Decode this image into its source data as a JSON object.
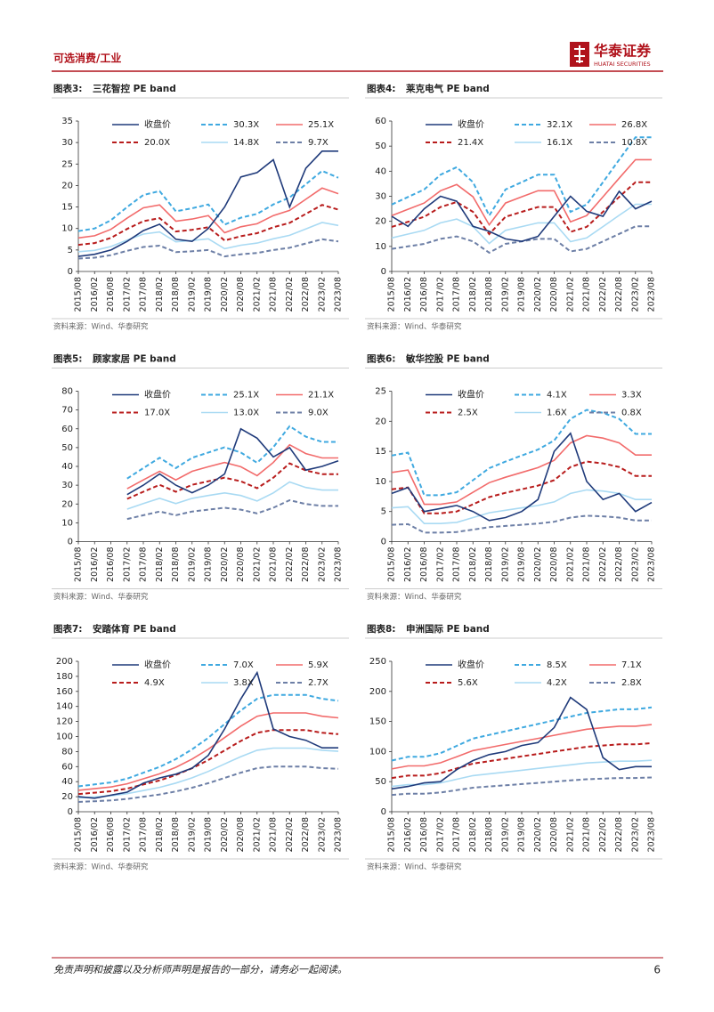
{
  "header": {
    "section": "可选消费/工业",
    "logo_cn": "华泰证券",
    "logo_en": "HUATAI SECURITIES"
  },
  "footer": {
    "disclaimer": "免责声明和披露以及分析师声明是报告的一部分，请务必一起阅读。",
    "page": "6"
  },
  "chart_data": [
    {
      "type": "line",
      "label": "图表3:",
      "title": "三花智控 PE band",
      "source": "资料来源：Wind、华泰研究",
      "categories": [
        "2015/08",
        "2016/02",
        "2016/08",
        "2017/02",
        "2017/08",
        "2018/02",
        "2018/08",
        "2019/02",
        "2019/08",
        "2020/02",
        "2020/08",
        "2021/02",
        "2021/08",
        "2022/02",
        "2022/08",
        "2023/02",
        "2023/08"
      ],
      "ylim": [
        0,
        35
      ],
      "yticks": [
        0,
        5,
        10,
        15,
        20,
        25,
        30,
        35
      ],
      "series": [
        {
          "name": "收盘价",
          "color": "#1f3a7a",
          "dashed": false,
          "values": [
            3.5,
            4,
            5,
            7,
            9.5,
            11,
            7.5,
            7,
            10,
            15,
            22,
            23,
            26,
            15,
            24,
            28,
            28
          ]
        },
        {
          "name": "30.3X",
          "color": "#3fa9e0",
          "dashed": true,
          "values": [
            9.4,
            10,
            11.9,
            15,
            17.8,
            18.7,
            14,
            14.7,
            15.6,
            10.9,
            12.5,
            13.4,
            15.6,
            17.2,
            20.3,
            23.4,
            21.8
          ]
        },
        {
          "name": "25.1X",
          "color": "#f26b6b",
          "dashed": false,
          "values": [
            7.8,
            8.3,
            9.8,
            12.4,
            14.8,
            15.5,
            11.7,
            12.2,
            13,
            9,
            10.4,
            11.1,
            13,
            14.2,
            16.8,
            19.4,
            18.1
          ]
        },
        {
          "name": "20.0X",
          "color": "#b81c1c",
          "dashed": true,
          "values": [
            6.2,
            6.6,
            7.8,
            9.9,
            11.7,
            12.4,
            9.3,
            9.7,
            10.3,
            7.2,
            8.2,
            8.9,
            10.3,
            11.3,
            13.4,
            15.5,
            14.4
          ]
        },
        {
          "name": "14.8X",
          "color": "#a9daf3",
          "dashed": false,
          "values": [
            4.6,
            4.9,
            5.8,
            7.3,
            8.7,
            9.2,
            6.9,
            7.2,
            7.6,
            5.3,
            6.1,
            6.6,
            7.6,
            8.4,
            9.9,
            11.4,
            10.7
          ]
        },
        {
          "name": "9.7X",
          "color": "#6d7fa6",
          "dashed": true,
          "values": [
            3,
            3.2,
            3.8,
            4.8,
            5.7,
            6,
            4.5,
            4.7,
            5,
            3.5,
            4,
            4.3,
            5,
            5.5,
            6.5,
            7.5,
            7
          ]
        }
      ]
    },
    {
      "type": "line",
      "label": "图表4:",
      "title": "莱克电气 PE band",
      "source": "资料来源：Wind、华泰研究",
      "categories": [
        "2015/08",
        "2016/02",
        "2016/08",
        "2017/02",
        "2017/08",
        "2018/02",
        "2018/08",
        "2019/02",
        "2019/08",
        "2020/02",
        "2020/08",
        "2021/02",
        "2021/08",
        "2022/02",
        "2022/08",
        "2023/02",
        "2023/08"
      ],
      "ylim": [
        0,
        60
      ],
      "yticks": [
        0,
        10,
        20,
        30,
        40,
        50,
        60
      ],
      "series": [
        {
          "name": "收盘价",
          "color": "#1f3a7a",
          "dashed": false,
          "values": [
            22,
            18,
            25,
            30,
            28,
            18,
            16,
            13,
            12,
            14,
            22,
            30,
            24,
            22,
            32,
            25,
            28
          ]
        },
        {
          "name": "32.1X",
          "color": "#3fa9e0",
          "dashed": true,
          "values": [
            26.7,
            29.7,
            32.7,
            38.6,
            41.6,
            35.6,
            22.3,
            32.7,
            35.6,
            38.6,
            38.6,
            23.8,
            26.7,
            35.6,
            44.6,
            53.5,
            53.5
          ]
        },
        {
          "name": "26.8X",
          "color": "#f26b6b",
          "dashed": false,
          "values": [
            22.3,
            24.8,
            27.3,
            32.2,
            34.7,
            29.8,
            18.6,
            27.3,
            29.8,
            32.2,
            32.2,
            19.8,
            22.3,
            29.8,
            37.2,
            44.6,
            44.6
          ]
        },
        {
          "name": "21.4X",
          "color": "#b81c1c",
          "dashed": true,
          "values": [
            17.8,
            19.8,
            21.8,
            25.7,
            27.7,
            23.8,
            14.9,
            21.8,
            23.8,
            25.7,
            25.7,
            15.8,
            17.8,
            23.8,
            29.7,
            35.6,
            35.6
          ]
        },
        {
          "name": "16.1X",
          "color": "#a9daf3",
          "dashed": false,
          "values": [
            13.4,
            14.9,
            16.4,
            19.4,
            20.9,
            17.9,
            11.2,
            16.4,
            17.9,
            19.4,
            19.4,
            11.9,
            13.4,
            17.9,
            22.4,
            26.8,
            26.8
          ]
        },
        {
          "name": "10.8X",
          "color": "#6d7fa6",
          "dashed": true,
          "values": [
            9,
            10,
            11,
            13,
            14,
            12,
            7.5,
            11,
            12,
            13,
            13,
            8,
            9,
            12,
            15,
            18,
            18
          ]
        }
      ]
    },
    {
      "type": "line",
      "label": "图表5:",
      "title": "顾家家居 PE band",
      "source": "资料来源：Wind、华泰研究",
      "categories": [
        "2015/08",
        "2016/02",
        "2016/08",
        "2017/02",
        "2017/08",
        "2018/02",
        "2018/08",
        "2019/02",
        "2019/08",
        "2020/02",
        "2020/08",
        "2021/02",
        "2021/08",
        "2022/02",
        "2022/08",
        "2023/02",
        "2023/08"
      ],
      "ylim": [
        0,
        80
      ],
      "yticks": [
        0,
        10,
        20,
        30,
        40,
        50,
        60,
        70,
        80
      ],
      "series": [
        {
          "name": "收盘价",
          "color": "#1f3a7a",
          "dashed": false,
          "values": [
            null,
            null,
            null,
            25,
            30,
            36,
            30,
            26,
            30,
            36,
            60,
            55,
            45,
            50,
            38,
            40,
            43
          ]
        },
        {
          "name": "25.1X",
          "color": "#3fa9e0",
          "dashed": true,
          "values": [
            null,
            null,
            null,
            33.5,
            39.1,
            44.6,
            39.1,
            44.6,
            47.4,
            50.2,
            47.4,
            41.9,
            50.2,
            61.4,
            55.8,
            53,
            53
          ]
        },
        {
          "name": "21.1X",
          "color": "#f26b6b",
          "dashed": false,
          "values": [
            null,
            null,
            null,
            28.1,
            32.8,
            37.4,
            32.8,
            37.4,
            39.8,
            42.1,
            39.8,
            35.1,
            42.1,
            51.5,
            46.8,
            44.5,
            44.5
          ]
        },
        {
          "name": "17.0X",
          "color": "#b81c1c",
          "dashed": true,
          "values": [
            null,
            null,
            null,
            22.7,
            26.5,
            30.2,
            26.5,
            30.2,
            32.1,
            34,
            32.1,
            28.4,
            34,
            41.6,
            37.8,
            35.9,
            35.9
          ]
        },
        {
          "name": "13.0X",
          "color": "#a9daf3",
          "dashed": false,
          "values": [
            null,
            null,
            null,
            17.3,
            20.2,
            23,
            20.2,
            23,
            24.5,
            25.9,
            24.5,
            21.6,
            25.9,
            31.7,
            28.8,
            27.4,
            27.4
          ]
        },
        {
          "name": "9.0X",
          "color": "#6d7fa6",
          "dashed": true,
          "values": [
            null,
            null,
            null,
            12,
            14,
            16,
            14,
            16,
            17,
            18,
            17,
            15,
            18,
            22,
            20,
            19,
            19
          ]
        }
      ]
    },
    {
      "type": "line",
      "label": "图表6:",
      "title": "敏华控股 PE band",
      "source": "资料来源：Wind、华泰研究",
      "categories": [
        "2015/08",
        "2016/02",
        "2016/08",
        "2017/02",
        "2017/08",
        "2018/02",
        "2018/08",
        "2019/02",
        "2019/08",
        "2020/02",
        "2020/08",
        "2021/02",
        "2021/08",
        "2022/02",
        "2022/08",
        "2023/02",
        "2023/08"
      ],
      "ylim": [
        0,
        25
      ],
      "yticks": [
        0,
        5,
        10,
        15,
        20,
        25
      ],
      "series": [
        {
          "name": "收盘价",
          "color": "#1f3a7a",
          "dashed": false,
          "values": [
            8,
            9,
            5,
            5.5,
            6,
            5,
            3.5,
            4,
            5,
            7,
            15,
            18,
            10,
            7,
            8,
            5,
            6.5
          ]
        },
        {
          "name": "4.1X",
          "color": "#3fa9e0",
          "dashed": true,
          "values": [
            14.3,
            14.8,
            7.7,
            7.7,
            8.2,
            10.2,
            12.2,
            13.3,
            14.3,
            15.3,
            16.8,
            20.4,
            21.9,
            21.4,
            20.4,
            17.9,
            17.9
          ]
        },
        {
          "name": "3.3X",
          "color": "#f26b6b",
          "dashed": false,
          "values": [
            11.5,
            11.9,
            6.2,
            6.2,
            6.6,
            8.2,
            9.8,
            10.7,
            11.5,
            12.3,
            13.5,
            16.4,
            17.6,
            17.2,
            16.4,
            14.4,
            14.4
          ]
        },
        {
          "name": "2.5X",
          "color": "#b81c1c",
          "dashed": true,
          "values": [
            8.7,
            9,
            4.7,
            4.7,
            5,
            6.2,
            7.4,
            8.1,
            8.7,
            9.3,
            10.2,
            12.4,
            13.3,
            13,
            12.4,
            10.9,
            10.9
          ]
        },
        {
          "name": "1.6X",
          "color": "#a9daf3",
          "dashed": false,
          "values": [
            5.6,
            5.8,
            3,
            3,
            3.2,
            4,
            4.8,
            5.2,
            5.6,
            6,
            6.6,
            8,
            8.6,
            8.4,
            8,
            7,
            7
          ]
        },
        {
          "name": "0.8X",
          "color": "#6d7fa6",
          "dashed": true,
          "values": [
            2.8,
            2.9,
            1.5,
            1.5,
            1.6,
            2,
            2.4,
            2.6,
            2.8,
            3,
            3.3,
            4,
            4.3,
            4.2,
            4,
            3.5,
            3.5
          ]
        }
      ]
    },
    {
      "type": "line",
      "label": "图表7:",
      "title": "安踏体育 PE band",
      "source": "资料来源：Wind、华泰研究",
      "categories": [
        "2015/08",
        "2016/02",
        "2016/08",
        "2017/02",
        "2017/08",
        "2018/02",
        "2018/08",
        "2019/02",
        "2019/08",
        "2020/02",
        "2020/08",
        "2021/02",
        "2021/08",
        "2022/02",
        "2022/08",
        "2023/02",
        "2023/08"
      ],
      "ylim": [
        0,
        200
      ],
      "yticks": [
        0,
        20,
        40,
        60,
        80,
        100,
        120,
        140,
        160,
        180,
        200
      ],
      "series": [
        {
          "name": "收盘价",
          "color": "#1f3a7a",
          "dashed": false,
          "values": [
            20,
            18,
            22,
            26,
            38,
            45,
            50,
            58,
            75,
            110,
            150,
            185,
            110,
            100,
            95,
            85,
            85
          ]
        },
        {
          "name": "7.0X",
          "color": "#3fa9e0",
          "dashed": true,
          "values": [
            33.7,
            36.3,
            38.9,
            44,
            51.8,
            59.6,
            69.9,
            82.9,
            98.4,
            116.6,
            134.7,
            150.2,
            155.4,
            155.4,
            155.4,
            150.2,
            147.6
          ]
        },
        {
          "name": "5.9X",
          "color": "#f26b6b",
          "dashed": false,
          "values": [
            28.5,
            30.7,
            32.9,
            37.2,
            43.8,
            50.4,
            59.1,
            70.1,
            83.2,
            98.6,
            113.9,
            127,
            131.4,
            131.4,
            131.4,
            127,
            124.8
          ]
        },
        {
          "name": "4.9X",
          "color": "#b81c1c",
          "dashed": true,
          "values": [
            23.5,
            25.3,
            27.2,
            30.8,
            36.2,
            41.6,
            48.9,
            57.9,
            68.8,
            81.5,
            94.1,
            105,
            108.6,
            108.6,
            108.6,
            105,
            103.2
          ]
        },
        {
          "name": "3.8X",
          "color": "#a9daf3",
          "dashed": false,
          "values": [
            18.3,
            19.7,
            21.2,
            24,
            28.2,
            32.4,
            38.1,
            45.1,
            53.6,
            63.5,
            73.3,
            81.8,
            84.6,
            84.6,
            84.6,
            81.8,
            80.4
          ]
        },
        {
          "name": "2.7X",
          "color": "#6d7fa6",
          "dashed": true,
          "values": [
            13,
            14,
            15,
            17,
            20,
            23,
            27,
            32,
            38,
            45,
            52,
            58,
            60,
            60,
            60,
            58,
            57
          ]
        }
      ]
    },
    {
      "type": "line",
      "label": "图表8:",
      "title": "申洲国际 PE band",
      "source": "资料来源：Wind、华泰研究",
      "categories": [
        "2015/08",
        "2016/02",
        "2016/08",
        "2017/02",
        "2017/08",
        "2018/02",
        "2018/08",
        "2019/02",
        "2019/08",
        "2020/02",
        "2020/08",
        "2021/02",
        "2021/08",
        "2022/02",
        "2022/08",
        "2023/02",
        "2023/08"
      ],
      "ylim": [
        0,
        250
      ],
      "yticks": [
        0,
        50,
        100,
        150,
        200,
        250
      ],
      "series": [
        {
          "name": "收盘价",
          "color": "#1f3a7a",
          "dashed": false,
          "values": [
            38,
            42,
            48,
            50,
            70,
            85,
            95,
            100,
            110,
            115,
            140,
            190,
            170,
            90,
            70,
            75,
            75
          ]
        },
        {
          "name": "8.5X",
          "color": "#3fa9e0",
          "dashed": true,
          "values": [
            85.1,
            91.2,
            91.2,
            97.3,
            109.4,
            121.6,
            127.7,
            133.8,
            139.8,
            145.9,
            152,
            158.1,
            164.2,
            167.2,
            170.2,
            170.2,
            173.3
          ]
        },
        {
          "name": "7.1X",
          "color": "#f26b6b",
          "dashed": false,
          "values": [
            71.1,
            76.2,
            76.2,
            81.3,
            91.4,
            101.6,
            106.7,
            111.8,
            116.8,
            121.9,
            127,
            132.1,
            137.2,
            139.7,
            142.2,
            142.2,
            144.8
          ]
        },
        {
          "name": "5.6X",
          "color": "#b81c1c",
          "dashed": true,
          "values": [
            56,
            60,
            60,
            64,
            72,
            80,
            84,
            88,
            92,
            96,
            100,
            104,
            108,
            110,
            112,
            112,
            114
          ]
        },
        {
          "name": "4.2X",
          "color": "#a9daf3",
          "dashed": false,
          "values": [
            42,
            45,
            45,
            48,
            54,
            60,
            63,
            66,
            69,
            72,
            75,
            78,
            81,
            82.5,
            84,
            84,
            85.5
          ]
        },
        {
          "name": "2.8X",
          "color": "#6d7fa6",
          "dashed": true,
          "values": [
            28,
            30,
            30,
            32,
            36,
            40,
            42,
            44,
            46,
            48,
            50,
            52,
            54,
            55,
            56,
            56,
            57
          ]
        }
      ]
    }
  ]
}
